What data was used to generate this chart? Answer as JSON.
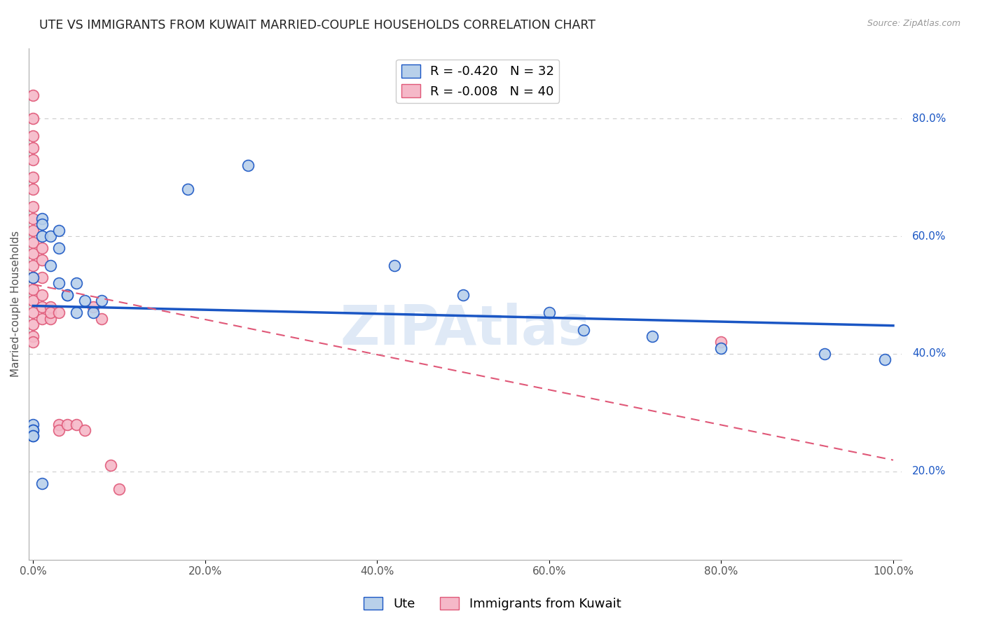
{
  "title": "UTE VS IMMIGRANTS FROM KUWAIT MARRIED-COUPLE HOUSEHOLDS CORRELATION CHART",
  "source": "Source: ZipAtlas.com",
  "ylabel": "Married-couple Households",
  "ytick_values": [
    0.2,
    0.4,
    0.6,
    0.8
  ],
  "xlim": [
    -0.005,
    1.01
  ],
  "ylim": [
    0.05,
    0.92
  ],
  "ute_x": [
    0.0,
    0.01,
    0.02,
    0.03,
    0.04,
    0.05,
    0.06,
    0.07,
    0.08,
    0.01,
    0.01,
    0.02,
    0.03,
    0.03,
    0.04,
    0.05,
    0.0,
    0.0,
    0.0,
    0.0,
    0.0,
    0.01,
    0.18,
    0.25,
    0.42,
    0.5,
    0.6,
    0.64,
    0.72,
    0.8,
    0.92,
    0.99
  ],
  "ute_y": [
    0.53,
    0.6,
    0.55,
    0.52,
    0.5,
    0.52,
    0.49,
    0.47,
    0.49,
    0.63,
    0.62,
    0.6,
    0.61,
    0.58,
    0.5,
    0.47,
    0.28,
    0.27,
    0.27,
    0.26,
    0.26,
    0.18,
    0.68,
    0.72,
    0.55,
    0.5,
    0.47,
    0.44,
    0.43,
    0.41,
    0.4,
    0.39
  ],
  "kuwait_x": [
    0.0,
    0.0,
    0.0,
    0.0,
    0.0,
    0.0,
    0.0,
    0.0,
    0.0,
    0.0,
    0.0,
    0.0,
    0.0,
    0.0,
    0.0,
    0.0,
    0.0,
    0.0,
    0.0,
    0.0,
    0.01,
    0.01,
    0.01,
    0.01,
    0.01,
    0.01,
    0.02,
    0.02,
    0.02,
    0.03,
    0.03,
    0.03,
    0.04,
    0.05,
    0.06,
    0.07,
    0.08,
    0.09,
    0.1,
    0.8
  ],
  "kuwait_y": [
    0.84,
    0.8,
    0.77,
    0.75,
    0.73,
    0.7,
    0.68,
    0.65,
    0.63,
    0.61,
    0.59,
    0.57,
    0.55,
    0.53,
    0.51,
    0.49,
    0.47,
    0.45,
    0.43,
    0.42,
    0.58,
    0.56,
    0.53,
    0.5,
    0.48,
    0.46,
    0.48,
    0.46,
    0.47,
    0.47,
    0.28,
    0.27,
    0.28,
    0.28,
    0.27,
    0.48,
    0.46,
    0.21,
    0.17,
    0.42
  ],
  "ute_color": "#b8d0ea",
  "kuwait_color": "#f5b8c8",
  "ute_line_color": "#1a56c4",
  "kuwait_line_color": "#e05878",
  "ute_R": -0.42,
  "ute_N": 32,
  "kuwait_R": -0.008,
  "kuwait_N": 40,
  "marker_size": 130,
  "marker_edge_width": 1.2,
  "watermark": "ZIPAtlas",
  "grid_color": "#cccccc",
  "title_fontsize": 12.5,
  "axis_label_fontsize": 11,
  "tick_fontsize": 11,
  "legend_fontsize": 13
}
